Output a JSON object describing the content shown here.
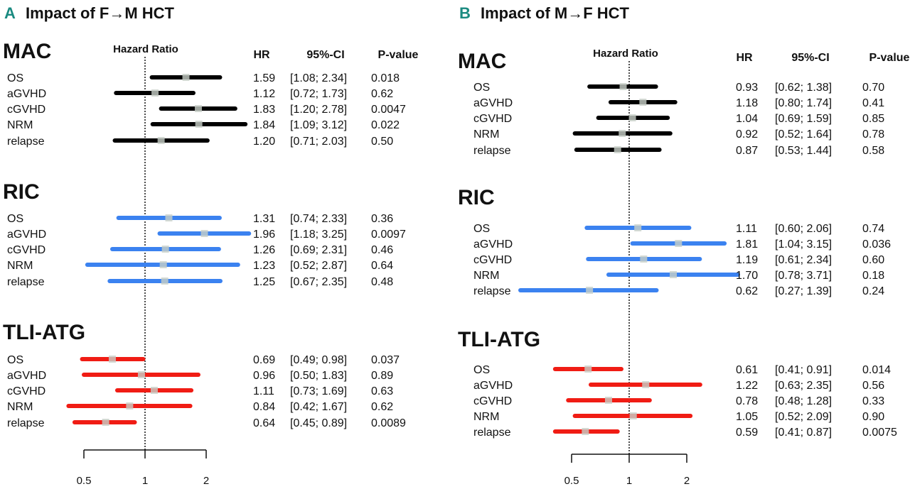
{
  "chart_data": [
    {
      "type": "forest",
      "panel_letter": "A",
      "title": "Impact of F→M HCT",
      "axis_label": "Hazard Ratio",
      "scale": "log",
      "ticks": [
        "0.5",
        "1",
        "2"
      ],
      "reference_line": 1,
      "columns": [
        "HR",
        "95%-CI",
        "P-value"
      ],
      "groups": [
        {
          "name": "MAC",
          "color": "#000000",
          "rows": [
            {
              "label": "OS",
              "hr": 1.59,
              "lo": 1.08,
              "hi": 2.34,
              "hr_text": "1.59",
              "ci_text": "[1.08; 2.34]",
              "p": "0.018"
            },
            {
              "label": "aGVHD",
              "hr": 1.12,
              "lo": 0.72,
              "hi": 1.73,
              "hr_text": "1.12",
              "ci_text": "[0.72; 1.73]",
              "p": "0.62"
            },
            {
              "label": "cGVHD",
              "hr": 1.83,
              "lo": 1.2,
              "hi": 2.78,
              "hr_text": "1.83",
              "ci_text": "[1.20; 2.78]",
              "p": "0.0047"
            },
            {
              "label": "NRM",
              "hr": 1.84,
              "lo": 1.09,
              "hi": 3.12,
              "hr_text": "1.84",
              "ci_text": "[1.09; 3.12]",
              "p": "0.022"
            },
            {
              "label": "relapse",
              "hr": 1.2,
              "lo": 0.71,
              "hi": 2.03,
              "hr_text": "1.20",
              "ci_text": "[0.71; 2.03]",
              "p": "0.50"
            }
          ]
        },
        {
          "name": "RIC",
          "color": "#3b82f0",
          "rows": [
            {
              "label": "OS",
              "hr": 1.31,
              "lo": 0.74,
              "hi": 2.33,
              "hr_text": "1.31",
              "ci_text": "[0.74; 2.33]",
              "p": "0.36"
            },
            {
              "label": "aGVHD",
              "hr": 1.96,
              "lo": 1.18,
              "hi": 3.25,
              "hr_text": "1.96",
              "ci_text": "[1.18; 3.25]",
              "p": "0.0097"
            },
            {
              "label": "cGVHD",
              "hr": 1.26,
              "lo": 0.69,
              "hi": 2.31,
              "hr_text": "1.26",
              "ci_text": "[0.69; 2.31]",
              "p": "0.46"
            },
            {
              "label": "NRM",
              "hr": 1.23,
              "lo": 0.52,
              "hi": 2.87,
              "hr_text": "1.23",
              "ci_text": "[0.52; 2.87]",
              "p": "0.64"
            },
            {
              "label": "relapse",
              "hr": 1.25,
              "lo": 0.67,
              "hi": 2.35,
              "hr_text": "1.25",
              "ci_text": "[0.67; 2.35]",
              "p": "0.48"
            }
          ]
        },
        {
          "name": "TLI-ATG",
          "color": "#f01c14",
          "rows": [
            {
              "label": "OS",
              "hr": 0.69,
              "lo": 0.49,
              "hi": 0.98,
              "hr_text": "0.69",
              "ci_text": "[0.49; 0.98]",
              "p": "0.037"
            },
            {
              "label": "aGVHD",
              "hr": 0.96,
              "lo": 0.5,
              "hi": 1.83,
              "hr_text": "0.96",
              "ci_text": "[0.50; 1.83]",
              "p": "0.89"
            },
            {
              "label": "cGVHD",
              "hr": 1.11,
              "lo": 0.73,
              "hi": 1.69,
              "hr_text": "1.11",
              "ci_text": "[0.73; 1.69]",
              "p": "0.63"
            },
            {
              "label": "NRM",
              "hr": 0.84,
              "lo": 0.42,
              "hi": 1.67,
              "hr_text": "0.84",
              "ci_text": "[0.42; 1.67]",
              "p": "0.62"
            },
            {
              "label": "relapse",
              "hr": 0.64,
              "lo": 0.45,
              "hi": 0.89,
              "hr_text": "0.64",
              "ci_text": "[0.45; 0.89]",
              "p": "0.0089"
            }
          ]
        }
      ]
    },
    {
      "type": "forest",
      "panel_letter": "B",
      "title": "Impact of M→F HCT",
      "axis_label": "Hazard Ratio",
      "scale": "log",
      "ticks": [
        "0.5",
        "1",
        "2"
      ],
      "reference_line": 1,
      "columns": [
        "HR",
        "95%-CI",
        "P-value"
      ],
      "groups": [
        {
          "name": "MAC",
          "color": "#000000",
          "rows": [
            {
              "label": "OS",
              "hr": 0.93,
              "lo": 0.62,
              "hi": 1.38,
              "hr_text": "0.93",
              "ci_text": "[0.62; 1.38]",
              "p": "0.70"
            },
            {
              "label": "aGVHD",
              "hr": 1.18,
              "lo": 0.8,
              "hi": 1.74,
              "hr_text": "1.18",
              "ci_text": "[0.80; 1.74]",
              "p": "0.41"
            },
            {
              "label": "cGVHD",
              "hr": 1.04,
              "lo": 0.69,
              "hi": 1.59,
              "hr_text": "1.04",
              "ci_text": "[0.69; 1.59]",
              "p": "0.85"
            },
            {
              "label": "NRM",
              "hr": 0.92,
              "lo": 0.52,
              "hi": 1.64,
              "hr_text": "0.92",
              "ci_text": "[0.52; 1.64]",
              "p": "0.78"
            },
            {
              "label": "relapse",
              "hr": 0.87,
              "lo": 0.53,
              "hi": 1.44,
              "hr_text": "0.87",
              "ci_text": "[0.53; 1.44]",
              "p": "0.58"
            }
          ]
        },
        {
          "name": "RIC",
          "color": "#3b82f0",
          "rows": [
            {
              "label": "OS",
              "hr": 1.11,
              "lo": 0.6,
              "hi": 2.06,
              "hr_text": "1.11",
              "ci_text": "[0.60; 2.06]",
              "p": "0.74"
            },
            {
              "label": "aGVHD",
              "hr": 1.81,
              "lo": 1.04,
              "hi": 3.15,
              "hr_text": "1.81",
              "ci_text": "[1.04; 3.15]",
              "p": "0.036"
            },
            {
              "label": "cGVHD",
              "hr": 1.19,
              "lo": 0.61,
              "hi": 2.34,
              "hr_text": "1.19",
              "ci_text": "[0.61; 2.34]",
              "p": "0.60"
            },
            {
              "label": "NRM",
              "hr": 1.7,
              "lo": 0.78,
              "hi": 3.71,
              "hr_text": "1.70",
              "ci_text": "[0.78; 3.71]",
              "p": "0.18"
            },
            {
              "label": "relapse",
              "hr": 0.62,
              "lo": 0.27,
              "hi": 1.39,
              "hr_text": "0.62",
              "ci_text": "[0.27; 1.39]",
              "p": "0.24"
            }
          ]
        },
        {
          "name": "TLI-ATG",
          "color": "#f01c14",
          "rows": [
            {
              "label": "OS",
              "hr": 0.61,
              "lo": 0.41,
              "hi": 0.91,
              "hr_text": "0.61",
              "ci_text": "[0.41; 0.91]",
              "p": "0.014"
            },
            {
              "label": "aGVHD",
              "hr": 1.22,
              "lo": 0.63,
              "hi": 2.35,
              "hr_text": "1.22",
              "ci_text": "[0.63; 2.35]",
              "p": "0.56"
            },
            {
              "label": "cGVHD",
              "hr": 0.78,
              "lo": 0.48,
              "hi": 1.28,
              "hr_text": "0.78",
              "ci_text": "[0.48; 1.28]",
              "p": "0.33"
            },
            {
              "label": "NRM",
              "hr": 1.05,
              "lo": 0.52,
              "hi": 2.09,
              "hr_text": "1.05",
              "ci_text": "[0.52; 2.09]",
              "p": "0.90"
            },
            {
              "label": "relapse",
              "hr": 0.59,
              "lo": 0.41,
              "hi": 0.87,
              "hr_text": "0.59",
              "ci_text": "[0.41; 0.87]",
              "p": "0.0075"
            }
          ]
        }
      ]
    }
  ],
  "colors": {
    "letter": "#1a8a80",
    "point": "#c8cfc8"
  }
}
